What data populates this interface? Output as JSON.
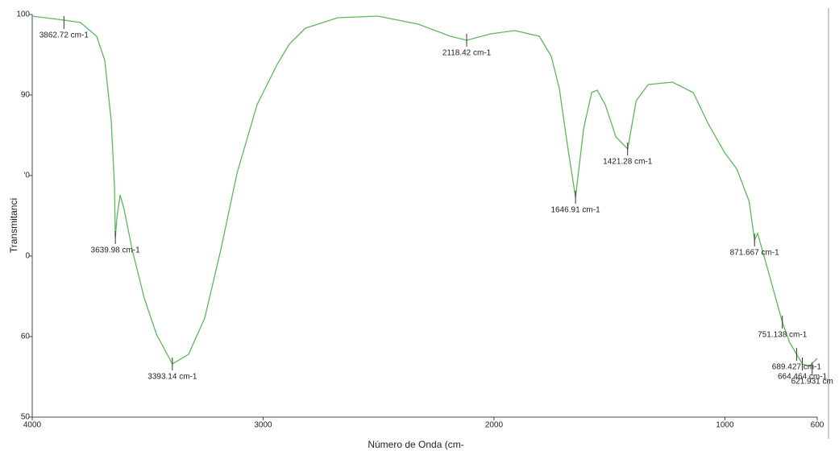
{
  "chart_data": {
    "type": "line",
    "x_label": "Número de Onda (cm-",
    "y_label": "Transmitanci",
    "xlim": [
      4000,
      600
    ],
    "ylim": [
      50,
      100
    ],
    "xticks": [
      4000,
      3000,
      2000,
      1000,
      600
    ],
    "yticks": [
      50,
      60,
      {
        "value": 70,
        "label": "0"
      },
      {
        "value": 80,
        "label": "'0"
      },
      90,
      100
    ],
    "series": [
      {
        "color": "#5cb85c",
        "x": [
          4000,
          3862,
          3791,
          3721,
          3686,
          3658,
          3644,
          3639.98,
          3633,
          3619,
          3602,
          3567,
          3515,
          3462,
          3393,
          3323,
          3253,
          3183,
          3113,
          3026,
          2939,
          2887,
          2817,
          2677,
          2503,
          2328,
          2189,
          2118,
          2014,
          1909,
          1804,
          1752,
          1717,
          1682,
          1647,
          1612,
          1577,
          1553,
          1518,
          1472,
          1421,
          1384,
          1332,
          1227,
          1137,
          1070,
          1000,
          948,
          895,
          871.7,
          858,
          809,
          751,
          720,
          689,
          664,
          635,
          600
        ],
        "values": [
          99.8,
          99.3,
          99.0,
          97.3,
          94.3,
          86.8,
          78.8,
          72.3,
          74.8,
          77.6,
          75.8,
          70.8,
          64.8,
          60.3,
          56.6,
          57.8,
          62.3,
          70.8,
          80.3,
          88.8,
          93.8,
          96.3,
          98.3,
          99.6,
          99.8,
          98.8,
          97.3,
          96.8,
          97.6,
          98.0,
          97.3,
          94.8,
          90.8,
          83.8,
          77.3,
          85.8,
          90.3,
          90.6,
          88.8,
          84.8,
          83.3,
          89.3,
          91.3,
          91.6,
          90.3,
          86.3,
          82.8,
          80.8,
          76.8,
          72.0,
          72.8,
          67.8,
          61.8,
          59.3,
          57.8,
          56.6,
          56.3,
          57.3
        ]
      }
    ],
    "annotations": [
      {
        "text": "3862.72 cm-1",
        "x": 3862.72,
        "y": 99.0
      },
      {
        "text": "3639.98 cm-1",
        "x": 3639.98,
        "y": 72.3
      },
      {
        "text": "3393.14 cm-1",
        "x": 3393.14,
        "y": 56.6
      },
      {
        "text": "2118.42 cm-1",
        "x": 2118.42,
        "y": 96.8
      },
      {
        "text": "1646.91 cm-1",
        "x": 1646.91,
        "y": 77.3
      },
      {
        "text": "1421.28 cm-1",
        "x": 1421.28,
        "y": 83.3
      },
      {
        "text": "871.667 cm-1",
        "x": 871.667,
        "y": 72.0
      },
      {
        "text": "751.138 cm-1",
        "x": 751.138,
        "y": 61.8
      },
      {
        "text": "689.427 cm-1",
        "x": 689.427,
        "y": 57.8
      },
      {
        "text": "664.464 cm-1",
        "x": 664.464,
        "y": 56.6
      },
      {
        "text": "621.931 cm",
        "x": 621.931,
        "y": 56.0
      }
    ]
  }
}
